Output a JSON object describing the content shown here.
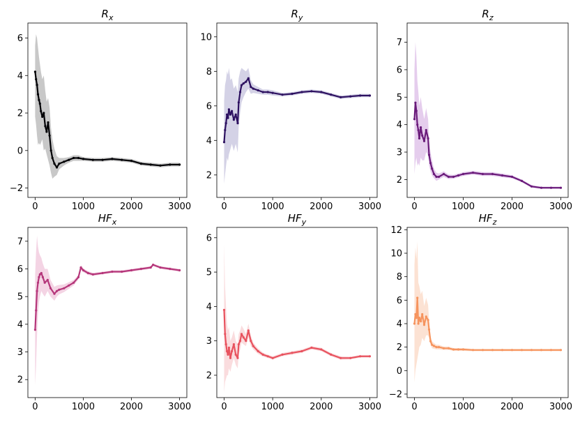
{
  "chart_data": [
    {
      "type": "scatter",
      "title": "R",
      "title_sub": "x",
      "color": "#000004",
      "band_color": "#b0b0b0",
      "xlim": [
        -150,
        3150
      ],
      "ylim": [
        -2.5,
        6.8
      ],
      "xticks": [
        0,
        1000,
        2000,
        3000
      ],
      "yticks": [
        -2,
        0,
        2,
        4,
        6
      ],
      "series": {
        "x": [
          0,
          20,
          40,
          60,
          80,
          100,
          120,
          150,
          180,
          210,
          240,
          270,
          300,
          330,
          360,
          400,
          450,
          500,
          600,
          700,
          800,
          900,
          1000,
          1200,
          1400,
          1600,
          1800,
          2000,
          2200,
          2400,
          2600,
          2800,
          3000
        ],
        "y": [
          4.2,
          3.8,
          3.5,
          3.0,
          2.7,
          2.5,
          2.1,
          1.8,
          2.0,
          1.3,
          1.0,
          1.5,
          0.8,
          0.0,
          -0.4,
          -0.7,
          -0.9,
          -0.7,
          -0.6,
          -0.5,
          -0.4,
          -0.4,
          -0.45,
          -0.5,
          -0.5,
          -0.45,
          -0.5,
          -0.55,
          -0.7,
          -0.75,
          -0.8,
          -0.75,
          -0.75
        ],
        "lower": [
          1.8,
          1.4,
          0.8,
          0.3,
          0.4,
          0.3,
          0.4,
          0.6,
          0.0,
          0.1,
          -0.2,
          -0.5,
          -0.8,
          -1.2,
          -1.5,
          -1.4,
          -1.3,
          -1.0,
          -0.8,
          -0.65,
          -0.55,
          -0.55,
          -0.55,
          -0.6,
          -0.6,
          -0.55,
          -0.6,
          -0.65,
          -0.8,
          -0.85,
          -0.9,
          -0.85,
          -0.85
        ],
        "upper": [
          5.6,
          6.2,
          6.0,
          5.5,
          5.0,
          4.6,
          4.2,
          3.8,
          4.0,
          3.2,
          2.6,
          2.8,
          2.3,
          1.2,
          0.6,
          0.1,
          -0.3,
          -0.4,
          -0.4,
          -0.35,
          -0.25,
          -0.25,
          -0.35,
          -0.4,
          -0.4,
          -0.35,
          -0.4,
          -0.45,
          -0.6,
          -0.65,
          -0.7,
          -0.65,
          -0.65
        ]
      }
    },
    {
      "type": "scatter",
      "title": "R",
      "title_sub": "y",
      "color": "#2d1160",
      "band_color": "#c2bfdc",
      "xlim": [
        -150,
        3150
      ],
      "ylim": [
        0.7,
        10.8
      ],
      "xticks": [
        0,
        1000,
        2000,
        3000
      ],
      "yticks": [
        2,
        4,
        6,
        8,
        10
      ],
      "series": {
        "x": [
          0,
          20,
          40,
          60,
          80,
          100,
          130,
          160,
          200,
          240,
          280,
          300,
          330,
          360,
          400,
          450,
          500,
          550,
          600,
          700,
          800,
          900,
          1000,
          1200,
          1400,
          1600,
          1800,
          2000,
          2200,
          2400,
          2600,
          2800,
          3000
        ],
        "y": [
          3.9,
          4.6,
          5.0,
          5.5,
          5.3,
          5.8,
          5.5,
          5.7,
          5.2,
          5.5,
          5.0,
          6.2,
          6.8,
          7.2,
          7.3,
          7.4,
          7.6,
          7.1,
          7.0,
          6.9,
          6.8,
          6.8,
          6.75,
          6.65,
          6.7,
          6.8,
          6.85,
          6.8,
          6.65,
          6.5,
          6.55,
          6.6,
          6.6
        ],
        "lower": [
          1.5,
          2.0,
          2.5,
          3.0,
          2.8,
          3.2,
          3.5,
          3.8,
          3.4,
          3.8,
          3.3,
          4.8,
          5.6,
          6.2,
          6.5,
          6.8,
          7.0,
          6.7,
          6.75,
          6.7,
          6.65,
          6.65,
          6.6,
          6.55,
          6.6,
          6.7,
          6.75,
          6.7,
          6.55,
          6.4,
          6.45,
          6.5,
          6.5
        ],
        "upper": [
          6.3,
          7.2,
          7.5,
          8.0,
          7.8,
          8.2,
          7.5,
          7.6,
          7.0,
          7.2,
          6.8,
          7.6,
          8.0,
          8.2,
          8.1,
          8.0,
          8.2,
          7.5,
          7.25,
          7.1,
          6.95,
          6.95,
          6.9,
          6.75,
          6.8,
          6.9,
          6.95,
          6.9,
          6.75,
          6.6,
          6.65,
          6.7,
          6.7
        ]
      }
    },
    {
      "type": "scatter",
      "title": "R",
      "title_sub": "z",
      "color": "#6a1b7a",
      "band_color": "#dab8e6",
      "xlim": [
        -150,
        3150
      ],
      "ylim": [
        1.35,
        7.7
      ],
      "xticks": [
        0,
        1000,
        2000,
        3000
      ],
      "yticks": [
        2,
        3,
        4,
        5,
        6,
        7
      ],
      "series": {
        "x": [
          0,
          20,
          40,
          60,
          80,
          100,
          130,
          160,
          200,
          240,
          280,
          300,
          330,
          360,
          400,
          450,
          500,
          600,
          700,
          800,
          900,
          1000,
          1200,
          1400,
          1600,
          1800,
          2000,
          2200,
          2400,
          2600,
          2800,
          3000
        ],
        "y": [
          4.2,
          4.8,
          4.5,
          4.0,
          3.8,
          3.5,
          3.9,
          3.6,
          3.4,
          3.8,
          3.5,
          2.9,
          2.6,
          2.4,
          2.2,
          2.1,
          2.1,
          2.2,
          2.1,
          2.1,
          2.15,
          2.2,
          2.25,
          2.2,
          2.2,
          2.15,
          2.1,
          1.95,
          1.75,
          1.7,
          1.7,
          1.7
        ],
        "lower": [
          2.2,
          2.6,
          2.8,
          2.5,
          2.6,
          2.5,
          2.8,
          2.7,
          2.7,
          3.0,
          2.9,
          2.5,
          2.3,
          2.15,
          2.05,
          1.95,
          2.0,
          2.1,
          2.02,
          2.03,
          2.08,
          2.13,
          2.18,
          2.13,
          2.13,
          2.08,
          2.04,
          1.9,
          1.7,
          1.66,
          1.66,
          1.66
        ],
        "upper": [
          6.0,
          7.0,
          6.5,
          5.6,
          5.2,
          4.7,
          5.0,
          4.6,
          4.2,
          4.6,
          4.2,
          3.4,
          3.0,
          2.7,
          2.4,
          2.25,
          2.22,
          2.3,
          2.18,
          2.17,
          2.22,
          2.27,
          2.32,
          2.27,
          2.27,
          2.22,
          2.16,
          2.0,
          1.8,
          1.74,
          1.74,
          1.74
        ]
      }
    },
    {
      "type": "scatter",
      "title": "HF",
      "title_sub": "x",
      "color": "#b5367a",
      "band_color": "#f0c2d8",
      "xlim": [
        -150,
        3150
      ],
      "ylim": [
        1.35,
        7.5
      ],
      "xticks": [
        0,
        1000,
        2000,
        3000
      ],
      "yticks": [
        2,
        3,
        4,
        5,
        6,
        7
      ],
      "series": {
        "x": [
          0,
          20,
          40,
          60,
          80,
          100,
          130,
          160,
          200,
          260,
          320,
          400,
          450,
          500,
          600,
          700,
          800,
          900,
          950,
          1000,
          1100,
          1200,
          1400,
          1600,
          1800,
          2000,
          2200,
          2400,
          2450,
          2600,
          2800,
          3000
        ],
        "y": [
          3.8,
          4.5,
          5.2,
          5.5,
          5.7,
          5.8,
          5.85,
          5.7,
          5.5,
          5.6,
          5.3,
          5.1,
          5.2,
          5.25,
          5.3,
          5.4,
          5.5,
          5.7,
          6.05,
          5.95,
          5.85,
          5.8,
          5.85,
          5.9,
          5.9,
          5.95,
          6.0,
          6.05,
          6.15,
          6.05,
          6.0,
          5.95
        ],
        "lower": [
          1.8,
          2.5,
          3.6,
          4.4,
          4.8,
          5.0,
          5.2,
          5.1,
          5.0,
          5.2,
          5.0,
          4.85,
          5.0,
          5.08,
          5.16,
          5.28,
          5.4,
          5.62,
          5.96,
          5.88,
          5.78,
          5.74,
          5.8,
          5.85,
          5.85,
          5.9,
          5.95,
          6.0,
          6.1,
          6.0,
          5.95,
          5.9
        ],
        "upper": [
          5.8,
          6.6,
          7.2,
          6.8,
          6.6,
          6.5,
          6.4,
          6.2,
          6.0,
          6.0,
          5.6,
          5.35,
          5.4,
          5.42,
          5.44,
          5.52,
          5.6,
          5.78,
          6.14,
          6.02,
          5.92,
          5.86,
          5.9,
          5.95,
          5.95,
          6.0,
          6.05,
          6.1,
          6.2,
          6.1,
          6.05,
          6.0
        ]
      }
    },
    {
      "type": "scatter",
      "title": "HF",
      "title_sub": "y",
      "color": "#e8525e",
      "band_color": "#f8cdd0",
      "xlim": [
        -150,
        3150
      ],
      "ylim": [
        1.35,
        6.3
      ],
      "xticks": [
        0,
        1000,
        2000,
        3000
      ],
      "yticks": [
        2,
        3,
        4,
        5,
        6
      ],
      "series": {
        "x": [
          0,
          20,
          40,
          60,
          80,
          100,
          130,
          160,
          200,
          240,
          280,
          300,
          330,
          360,
          400,
          450,
          500,
          550,
          600,
          700,
          800,
          900,
          1000,
          1200,
          1400,
          1600,
          1800,
          2000,
          2200,
          2400,
          2600,
          2800,
          3000
        ],
        "y": [
          3.9,
          3.2,
          2.9,
          2.7,
          2.6,
          2.8,
          2.5,
          2.7,
          2.9,
          2.6,
          2.5,
          2.9,
          3.0,
          3.2,
          3.1,
          3.0,
          3.3,
          3.0,
          2.85,
          2.7,
          2.6,
          2.55,
          2.5,
          2.6,
          2.65,
          2.7,
          2.8,
          2.75,
          2.6,
          2.5,
          2.5,
          2.55,
          2.55
        ],
        "lower": [
          1.5,
          1.8,
          1.9,
          2.0,
          2.0,
          2.2,
          2.1,
          2.3,
          2.5,
          2.3,
          2.2,
          2.6,
          2.75,
          2.95,
          2.9,
          2.85,
          3.1,
          2.85,
          2.75,
          2.62,
          2.54,
          2.5,
          2.45,
          2.55,
          2.6,
          2.65,
          2.75,
          2.7,
          2.55,
          2.45,
          2.46,
          2.51,
          2.51
        ],
        "upper": [
          5.8,
          4.6,
          4.0,
          3.5,
          3.3,
          3.4,
          3.0,
          3.1,
          3.3,
          3.0,
          2.9,
          3.2,
          3.3,
          3.45,
          3.35,
          3.2,
          3.5,
          3.15,
          2.95,
          2.78,
          2.66,
          2.6,
          2.55,
          2.65,
          2.7,
          2.75,
          2.85,
          2.8,
          2.65,
          2.55,
          2.54,
          2.59,
          2.59
        ]
      }
    },
    {
      "type": "scatter",
      "title": "HF",
      "title_sub": "z",
      "color": "#f6945e",
      "band_color": "#fbd6c0",
      "xlim": [
        -150,
        3150
      ],
      "ylim": [
        -2.3,
        12.2
      ],
      "xticks": [
        0,
        1000,
        2000,
        3000
      ],
      "yticks": [
        -2,
        0,
        2,
        4,
        6,
        8,
        10,
        12
      ],
      "series": {
        "x": [
          0,
          20,
          40,
          60,
          80,
          100,
          130,
          160,
          200,
          240,
          280,
          300,
          330,
          360,
          400,
          450,
          500,
          600,
          700,
          800,
          900,
          1000,
          1200,
          1400,
          1600,
          1800,
          2000,
          2200,
          2400,
          2600,
          2800,
          3000
        ],
        "y": [
          4.0,
          4.8,
          4.5,
          6.2,
          4.0,
          4.5,
          4.2,
          4.8,
          3.9,
          4.6,
          4.3,
          3.5,
          2.5,
          2.2,
          2.1,
          2.0,
          2.0,
          1.9,
          1.9,
          1.8,
          1.8,
          1.8,
          1.75,
          1.75,
          1.75,
          1.75,
          1.75,
          1.75,
          1.75,
          1.75,
          1.75,
          1.75
        ],
        "lower": [
          -1.0,
          0.0,
          0.5,
          1.0,
          1.5,
          2.0,
          2.2,
          2.8,
          2.5,
          3.0,
          3.0,
          2.8,
          2.2,
          1.9,
          1.85,
          1.8,
          1.8,
          1.75,
          1.75,
          1.68,
          1.68,
          1.68,
          1.65,
          1.65,
          1.65,
          1.65,
          1.65,
          1.65,
          1.65,
          1.65,
          1.65,
          1.65
        ],
        "upper": [
          9.0,
          10.5,
          9.5,
          11.0,
          7.5,
          7.2,
          6.5,
          6.8,
          5.5,
          6.2,
          5.6,
          4.2,
          2.9,
          2.5,
          2.35,
          2.2,
          2.2,
          2.05,
          2.05,
          1.92,
          1.92,
          1.92,
          1.85,
          1.85,
          1.85,
          1.85,
          1.85,
          1.85,
          1.85,
          1.85,
          1.85,
          1.85
        ]
      }
    }
  ]
}
